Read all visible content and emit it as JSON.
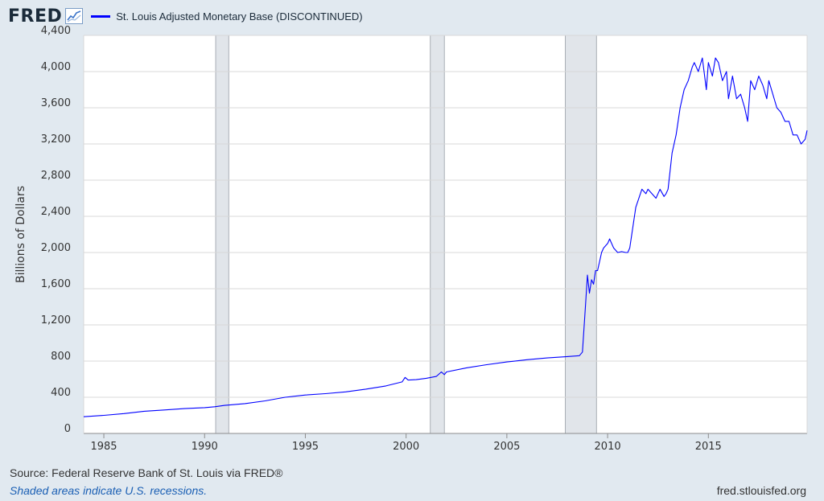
{
  "header": {
    "logo_text": "FRED",
    "series_label": "St. Louis Adjusted Monetary Base (DISCONTINUED)",
    "series_color": "#0000ff"
  },
  "footer": {
    "source": "Source: Federal Reserve Bank of St. Louis via FRED®",
    "recession_note": "Shaded areas indicate U.S. recessions.",
    "site": "fred.stlouisfed.org"
  },
  "chart_data": {
    "type": "line",
    "title": "",
    "xlabel": "",
    "ylabel": "Billions of Dollars",
    "xlim": [
      1984.0,
      2019.9
    ],
    "ylim": [
      0,
      4400
    ],
    "y_ticks": [
      0,
      400,
      800,
      1200,
      1600,
      2000,
      2400,
      2800,
      3200,
      3600,
      4000,
      4400
    ],
    "y_tick_labels": [
      "0",
      "400",
      "800",
      "1,200",
      "1,600",
      "2,000",
      "2,400",
      "2,800",
      "3,200",
      "3,600",
      "4,000",
      "4,400"
    ],
    "x_ticks": [
      1985,
      1990,
      1995,
      2000,
      2005,
      2010,
      2015
    ],
    "x_tick_labels": [
      "1985",
      "1990",
      "1995",
      "2000",
      "2005",
      "2010",
      "2015"
    ],
    "grid": true,
    "legend_position": "top-left",
    "recessions": [
      [
        1990.55,
        1991.2
      ],
      [
        2001.2,
        2001.9
      ],
      [
        2007.9,
        2009.45
      ]
    ],
    "recession_color": "#e1e5ea",
    "series": [
      {
        "name": "St. Louis Adjusted Monetary Base (DISCONTINUED)",
        "color": "#0000ff",
        "x": [
          1984.0,
          1985.0,
          1986.0,
          1987.0,
          1988.0,
          1989.0,
          1990.0,
          1990.5,
          1991.0,
          1992.0,
          1993.0,
          1994.0,
          1995.0,
          1996.0,
          1997.0,
          1998.0,
          1999.0,
          1999.8,
          1999.95,
          2000.1,
          2000.5,
          2001.0,
          2001.5,
          2001.75,
          2001.9,
          2002.0,
          2003.0,
          2004.0,
          2005.0,
          2006.0,
          2007.0,
          2008.0,
          2008.6,
          2008.75,
          2008.9,
          2009.0,
          2009.1,
          2009.2,
          2009.3,
          2009.4,
          2009.5,
          2009.6,
          2009.7,
          2009.8,
          2010.0,
          2010.1,
          2010.3,
          2010.5,
          2010.7,
          2010.9,
          2011.0,
          2011.1,
          2011.4,
          2011.7,
          2011.9,
          2012.0,
          2012.2,
          2012.4,
          2012.6,
          2012.8,
          2012.9,
          2013.0,
          2013.2,
          2013.4,
          2013.6,
          2013.8,
          2014.0,
          2014.2,
          2014.3,
          2014.5,
          2014.7,
          2014.9,
          2015.0,
          2015.2,
          2015.35,
          2015.5,
          2015.7,
          2015.9,
          2016.0,
          2016.2,
          2016.4,
          2016.6,
          2016.8,
          2016.95,
          2017.1,
          2017.3,
          2017.5,
          2017.7,
          2017.9,
          2018.0,
          2018.2,
          2018.4,
          2018.6,
          2018.8,
          2019.0,
          2019.2,
          2019.4,
          2019.6,
          2019.8,
          2019.9
        ],
        "values": [
          185,
          200,
          220,
          245,
          260,
          275,
          285,
          295,
          310,
          330,
          360,
          400,
          425,
          440,
          460,
          490,
          525,
          570,
          620,
          590,
          595,
          610,
          630,
          680,
          650,
          680,
          725,
          760,
          790,
          815,
          835,
          850,
          860,
          900,
          1400,
          1750,
          1550,
          1700,
          1650,
          1800,
          1800,
          1900,
          2000,
          2050,
          2100,
          2150,
          2050,
          2000,
          2010,
          2000,
          2000,
          2050,
          2500,
          2700,
          2650,
          2700,
          2650,
          2600,
          2700,
          2620,
          2650,
          2700,
          3100,
          3300,
          3600,
          3800,
          3900,
          4050,
          4100,
          4000,
          4150,
          3800,
          4100,
          3950,
          4150,
          4100,
          3900,
          4000,
          3700,
          3950,
          3700,
          3750,
          3600,
          3450,
          3900,
          3800,
          3950,
          3850,
          3700,
          3900,
          3750,
          3600,
          3550,
          3450,
          3450,
          3300,
          3300,
          3200,
          3250,
          3350
        ]
      }
    ]
  }
}
